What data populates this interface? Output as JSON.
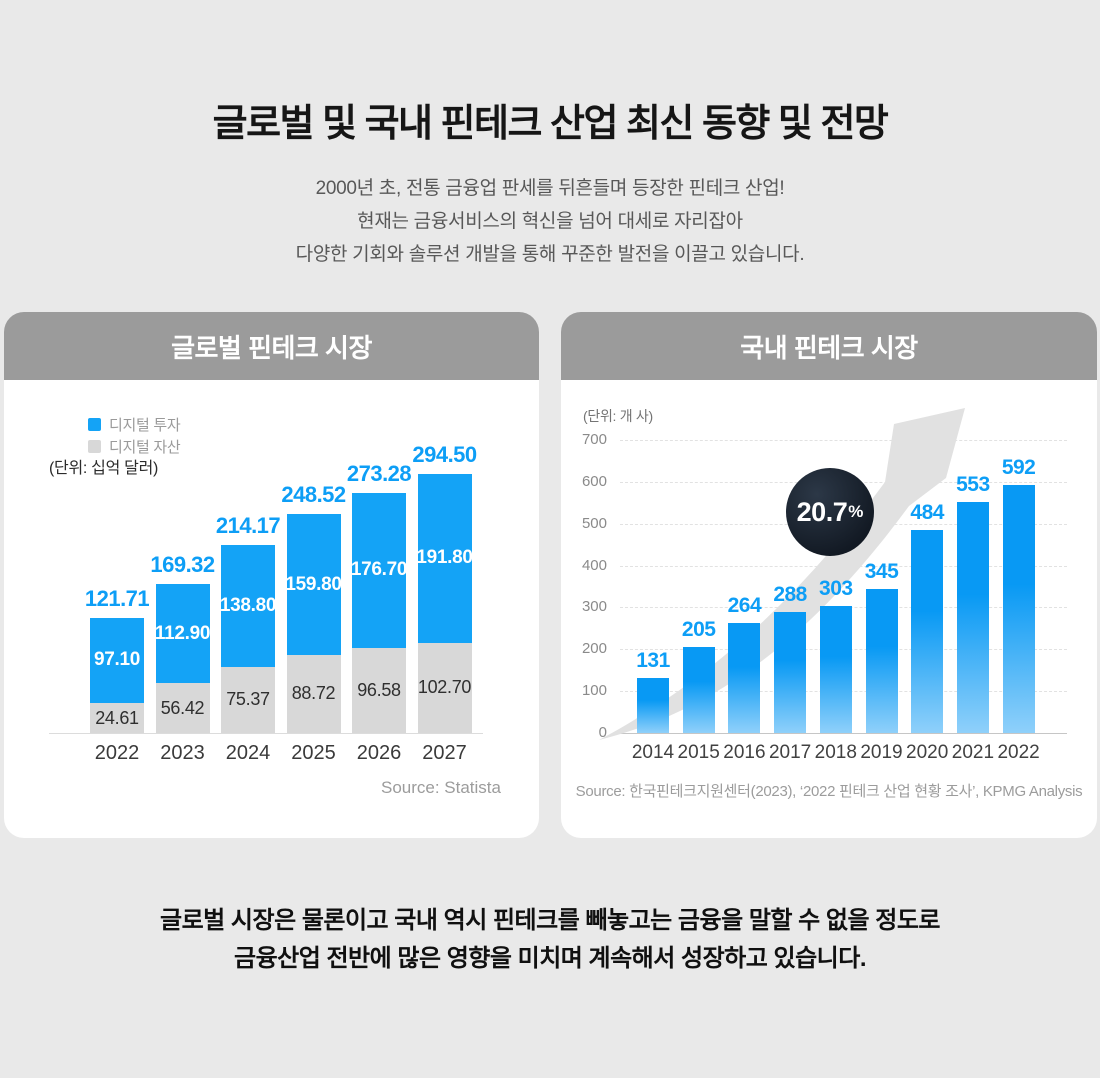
{
  "page": {
    "title": "글로벌 및 국내 핀테크 산업 최신 동향 및 전망",
    "subtitle_lines": [
      "2000년 초, 전통 금융업 판세를 뒤흔들며 등장한 핀테크 산업!",
      "현재는 금융서비스의 혁신을 넘어 대세로 자리잡아",
      "다양한 기회와 솔루션 개발을 통해 꾸준한 발전을 이끌고 있습니다."
    ],
    "footer_lines": [
      "글로벌 시장은 물론이고 국내 역시 핀테크를 빼놓고는 금융을 말할 수 없을 정도로",
      "금융산업 전반에 많은 영향을 미치며 계속해서 성장하고 있습니다."
    ]
  },
  "colors": {
    "accent_blue": "#14a3f6",
    "value_label_blue": "#0d9ef6",
    "segment_gray": "#d8d8d8",
    "header_gray": "#9b9b9b",
    "badge_dark": "#161e29",
    "arrow_gray": "#e1e1e1",
    "domestic_bar_gradient_top": "#0899f4",
    "domestic_bar_gradient_bottom": "#8fd0fa"
  },
  "chart_data": [
    {
      "type": "bar",
      "stacked": true,
      "title": "글로벌 핀테크 시장",
      "unit_label": "(단위: 십억 달러)",
      "source": "Source: Statista",
      "legend_position": "top-left",
      "grid": false,
      "categories": [
        "2022",
        "2023",
        "2024",
        "2025",
        "2026",
        "2027"
      ],
      "series": [
        {
          "name": "디지털 투자",
          "color": "#14a3f6",
          "values": [
            97.1,
            112.9,
            138.8,
            159.8,
            176.7,
            191.8
          ],
          "labels": [
            "97.10",
            "112.90",
            "138.80",
            "159.80",
            "176.70",
            "191.80"
          ]
        },
        {
          "name": "디지털 자산",
          "color": "#d8d8d8",
          "values": [
            24.61,
            56.42,
            75.37,
            88.72,
            96.58,
            102.7
          ],
          "labels": [
            "24.61",
            "56.42",
            "75.37",
            "88.72",
            "96.58",
            "102.70"
          ]
        }
      ],
      "totals": [
        121.71,
        169.32,
        214.17,
        248.52,
        273.28,
        294.5
      ],
      "total_labels": [
        "121.71",
        "169.32",
        "214.17",
        "248.52",
        "273.28",
        "294.50"
      ]
    },
    {
      "type": "bar",
      "stacked": false,
      "title": "국내 핀테크 시장",
      "unit_label": "(단위: 개 사)",
      "source": "Source: 한국핀테크지원센터(2023), ‘2022 핀테크 산업 현황 조사’, KPMG Analysis",
      "grid": true,
      "ylim": [
        0,
        700
      ],
      "yticks": [
        0,
        100,
        200,
        300,
        400,
        500,
        600,
        700
      ],
      "categories": [
        "2014",
        "2015",
        "2016",
        "2017",
        "2018",
        "2019",
        "2020",
        "2021",
        "2022"
      ],
      "values": [
        131,
        205,
        264,
        288,
        303,
        345,
        484,
        553,
        592
      ],
      "value_labels": [
        "131",
        "205",
        "264",
        "288",
        "303",
        "345",
        "484",
        "553",
        "592"
      ],
      "annotation": {
        "badge_number": "20.7",
        "badge_suffix": "%",
        "arrow": "up-right"
      }
    }
  ]
}
